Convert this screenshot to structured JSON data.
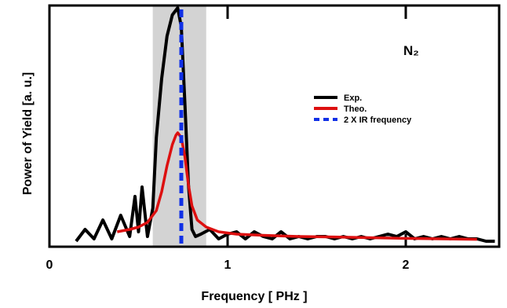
{
  "chart_data": {
    "type": "line",
    "xlabel": "Frequency [ PHz ]",
    "ylabel": "Power of Yield [a. u.]",
    "xlim": [
      0,
      2.5
    ],
    "ylim": [
      0,
      1.0
    ],
    "x_ticks": [
      "0",
      "1",
      "2"
    ],
    "annotation": "N₂",
    "shaded_band": [
      0.58,
      0.88
    ],
    "legend_position": "right-center",
    "series": [
      {
        "name": "Exp.",
        "color": "#000000",
        "style": "solid",
        "x": [
          0.15,
          0.2,
          0.25,
          0.3,
          0.35,
          0.4,
          0.45,
          0.48,
          0.5,
          0.52,
          0.55,
          0.58,
          0.6,
          0.63,
          0.66,
          0.69,
          0.72,
          0.74,
          0.76,
          0.78,
          0.8,
          0.82,
          0.85,
          0.9,
          0.95,
          1.0,
          1.05,
          1.1,
          1.15,
          1.2,
          1.25,
          1.3,
          1.35,
          1.4,
          1.45,
          1.5,
          1.55,
          1.6,
          1.65,
          1.7,
          1.75,
          1.8,
          1.85,
          1.9,
          1.95,
          2.0,
          2.05,
          2.1,
          2.15,
          2.2,
          2.25,
          2.3,
          2.35,
          2.4,
          2.45,
          2.5
        ],
        "values": [
          0.01,
          0.06,
          0.02,
          0.1,
          0.02,
          0.12,
          0.03,
          0.2,
          0.05,
          0.24,
          0.03,
          0.15,
          0.45,
          0.7,
          0.88,
          0.97,
          1.0,
          0.92,
          0.6,
          0.25,
          0.06,
          0.03,
          0.04,
          0.06,
          0.02,
          0.04,
          0.05,
          0.02,
          0.05,
          0.03,
          0.02,
          0.05,
          0.02,
          0.03,
          0.02,
          0.03,
          0.03,
          0.02,
          0.03,
          0.02,
          0.03,
          0.02,
          0.03,
          0.04,
          0.03,
          0.05,
          0.02,
          0.03,
          0.02,
          0.03,
          0.02,
          0.03,
          0.02,
          0.02,
          0.01,
          0.01
        ]
      },
      {
        "name": "Theo.",
        "color": "#dd1010",
        "style": "solid",
        "x": [
          0.38,
          0.45,
          0.5,
          0.55,
          0.6,
          0.63,
          0.66,
          0.69,
          0.71,
          0.72,
          0.73,
          0.74,
          0.76,
          0.78,
          0.8,
          0.83,
          0.88,
          0.95,
          1.05,
          1.2,
          1.4,
          1.6,
          1.8,
          2.0,
          2.2,
          2.4
        ],
        "values": [
          0.05,
          0.06,
          0.07,
          0.09,
          0.14,
          0.22,
          0.33,
          0.42,
          0.46,
          0.47,
          0.46,
          0.45,
          0.37,
          0.25,
          0.16,
          0.1,
          0.07,
          0.05,
          0.04,
          0.035,
          0.03,
          0.028,
          0.025,
          0.022,
          0.02,
          0.018
        ]
      },
      {
        "name": "2 X IR frequency",
        "color": "#1030e6",
        "style": "dashed",
        "x": [
          0.74,
          0.74
        ],
        "values": [
          0,
          1.05
        ]
      }
    ]
  }
}
